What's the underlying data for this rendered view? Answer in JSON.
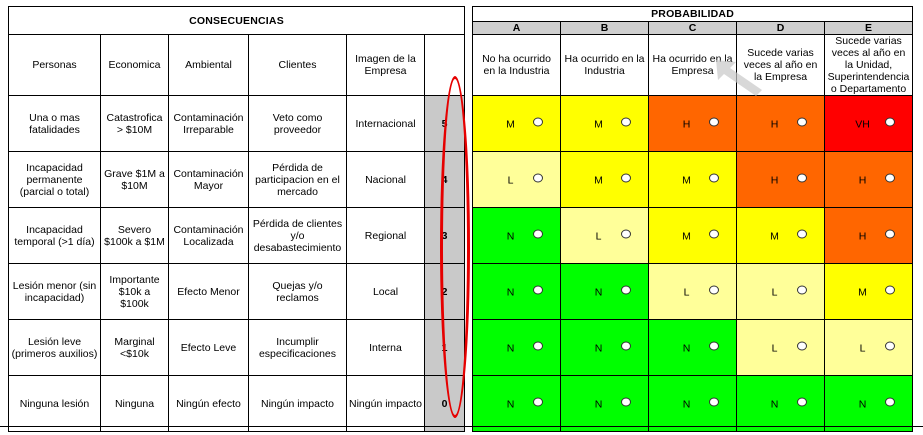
{
  "headers": {
    "consequences": "CONSECUENCIAS",
    "probability": "PROBABILIDAD",
    "categories": [
      "Personas",
      "Economica",
      "Ambiental",
      "Clientes",
      "Imagen de la Empresa"
    ],
    "letters": [
      "A",
      "B",
      "C",
      "D",
      "E"
    ],
    "probabilities": [
      "No ha ocurrido en la Industria",
      "Ha ocurrido en la Industria",
      "Ha ocurrido en la Empresa",
      "Sucede varias veces al año en la Empresa",
      "Sucede varias veces al año en la Unidad, Superintendencia o Departamento"
    ]
  },
  "rows": [
    {
      "personas": "Una o mas fatalidades",
      "economica": "Catastrofica > $10M",
      "ambiental": "Contaminación Irreparable",
      "clientes": "Veto como proveedor",
      "imagen": "Internacional",
      "severity": "5",
      "levels": [
        "M",
        "M",
        "H",
        "H",
        "VH"
      ]
    },
    {
      "personas": "Incapacidad permanente (parcial o total)",
      "economica": "Grave $1M a $10M",
      "ambiental": "Contaminación Mayor",
      "clientes": "Pérdida de participacion en el mercado",
      "imagen": "Nacional",
      "severity": "4",
      "levels": [
        "L",
        "M",
        "M",
        "H",
        "H"
      ]
    },
    {
      "personas": "Incapacidad temporal (>1 día)",
      "economica": "Severo $100k a $1M",
      "ambiental": "Contaminación Localizada",
      "clientes": "Pérdida de clientes y/o desabastecimiento",
      "imagen": "Regional",
      "severity": "3",
      "levels": [
        "N",
        "L",
        "M",
        "M",
        "H"
      ]
    },
    {
      "personas": "Lesión menor (sin incapacidad)",
      "economica": "Importante $10k a $100k",
      "ambiental": "Efecto Menor",
      "clientes": "Quejas y/o reclamos",
      "imagen": "Local",
      "severity": "2",
      "levels": [
        "N",
        "N",
        "L",
        "L",
        "M"
      ]
    },
    {
      "personas": "Lesión leve (primeros auxilios)",
      "economica": "Marginal <$10k",
      "ambiental": "Efecto Leve",
      "clientes": "Incumplir especificaciones",
      "imagen": "Interna",
      "severity": "1",
      "levels": [
        "N",
        "N",
        "N",
        "L",
        "L"
      ]
    },
    {
      "personas": "Ninguna lesión",
      "economica": "Ninguna",
      "ambiental": "Ningún efecto",
      "clientes": "Ningún impacto",
      "imagen": "Ningún impacto",
      "severity": "0",
      "levels": [
        "N",
        "N",
        "N",
        "N",
        "N"
      ]
    }
  ],
  "colors": {
    "N": "#00ff00",
    "L": "#ffff99",
    "M": "#ffff00",
    "H": "#ff6600",
    "VH": "#ff0000",
    "severity_column": "#c9c9c9",
    "highlight_oval": "#e60000"
  }
}
